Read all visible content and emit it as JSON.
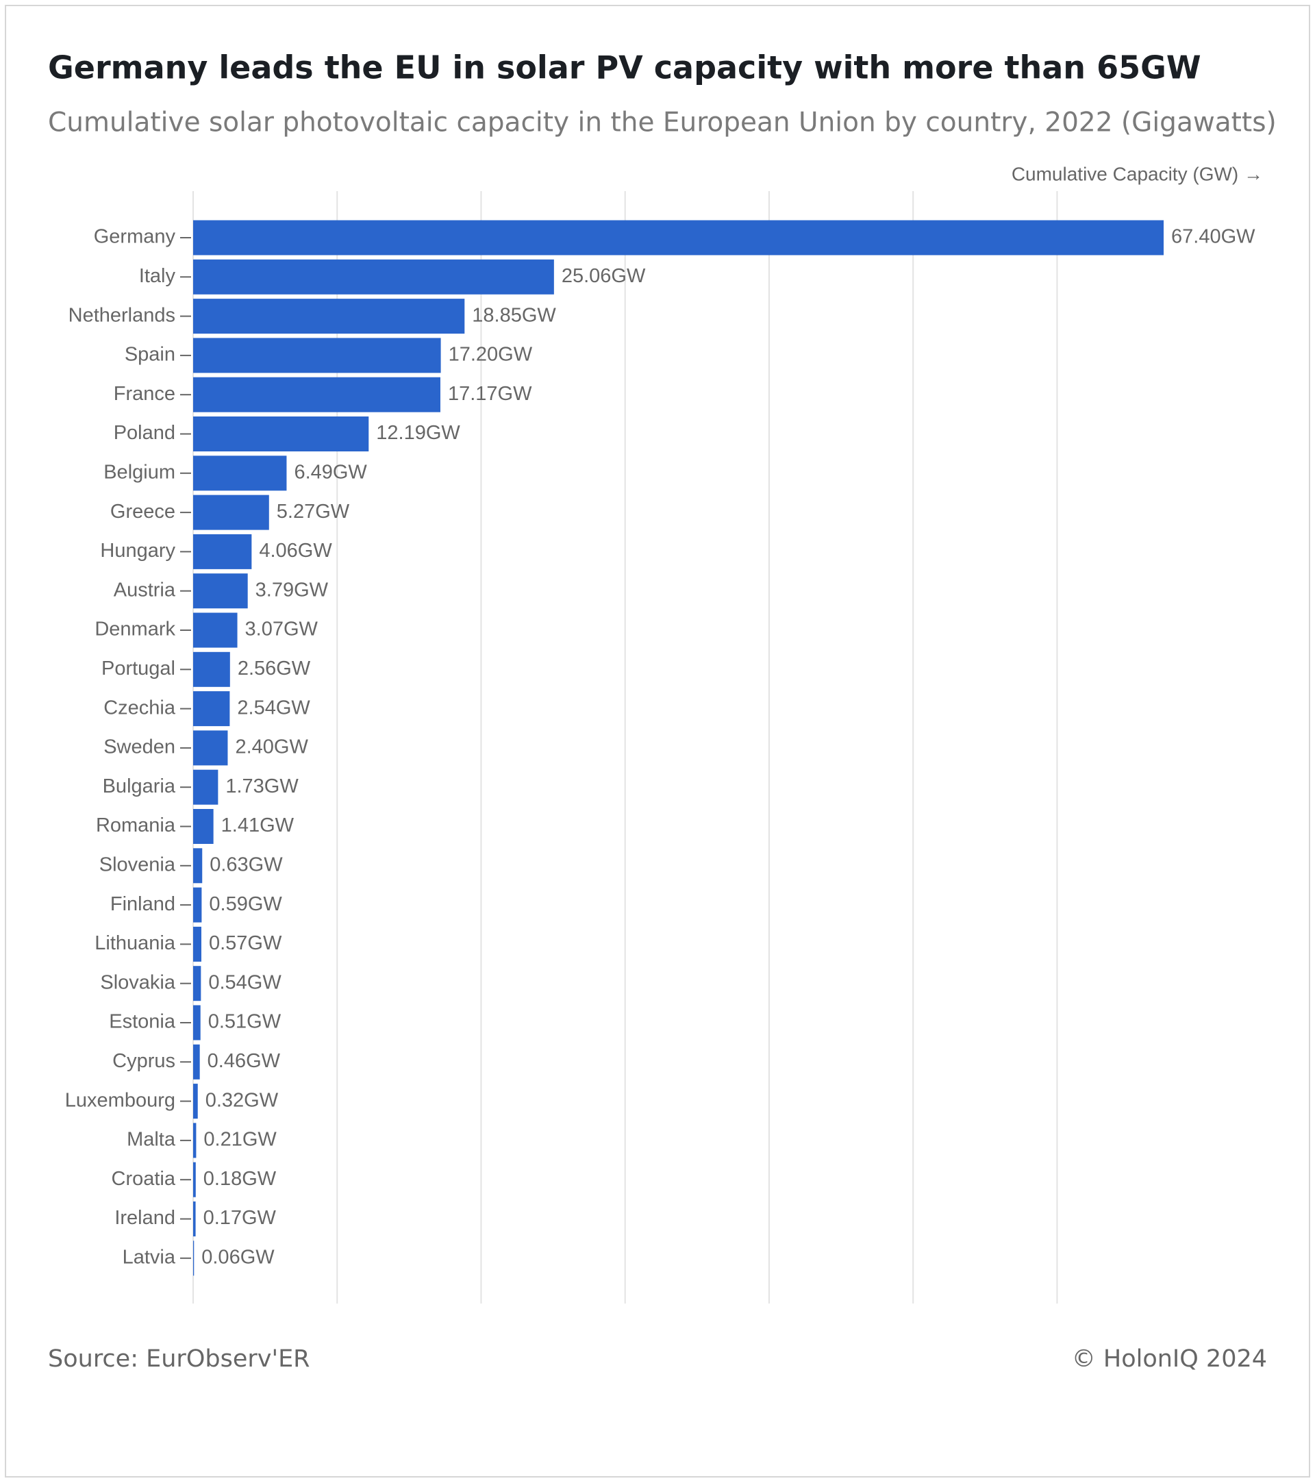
{
  "chart_data": {
    "type": "bar",
    "orientation": "horizontal",
    "title": "Germany leads the EU in solar PV capacity with more than 65GW",
    "subtitle": "Cumulative solar photovoltaic capacity in the European Union by country, 2022 (Gigawatts)",
    "x_label": "Cumulative Capacity (GW) →",
    "source": "Source: EurObserv'ER",
    "credit": "© HolonIQ 2024",
    "color": "#2a65cc",
    "grid": true,
    "categories": [
      "Germany",
      "Italy",
      "Netherlands",
      "Spain",
      "France",
      "Poland",
      "Belgium",
      "Greece",
      "Hungary",
      "Austria",
      "Denmark",
      "Portugal",
      "Czechia",
      "Sweden",
      "Bulgaria",
      "Romania",
      "Slovenia",
      "Finland",
      "Lithuania",
      "Slovakia",
      "Estonia",
      "Cyprus",
      "Luxembourg",
      "Malta",
      "Croatia",
      "Ireland",
      "Latvia"
    ],
    "values": [
      67.4,
      25.06,
      18.85,
      17.2,
      17.17,
      12.19,
      6.49,
      5.27,
      4.06,
      3.79,
      3.07,
      2.56,
      2.54,
      2.4,
      1.73,
      1.41,
      0.63,
      0.59,
      0.57,
      0.54,
      0.51,
      0.46,
      0.32,
      0.21,
      0.18,
      0.17,
      0.06
    ],
    "value_labels": [
      "67.40GW",
      "25.06GW",
      "18.85GW",
      "17.20GW",
      "17.17GW",
      "12.19GW",
      "6.49GW",
      "5.27GW",
      "4.06GW",
      "3.79GW",
      "3.07GW",
      "2.56GW",
      "2.54GW",
      "2.40GW",
      "1.73GW",
      "1.41GW",
      "0.63GW",
      "0.59GW",
      "0.57GW",
      "0.54GW",
      "0.51GW",
      "0.46GW",
      "0.32GW",
      "0.21GW",
      "0.18GW",
      "0.17GW",
      "0.06GW"
    ],
    "xlim": [
      0,
      67.4
    ],
    "xticks": [
      0,
      10,
      20,
      30,
      40,
      50,
      60
    ]
  }
}
